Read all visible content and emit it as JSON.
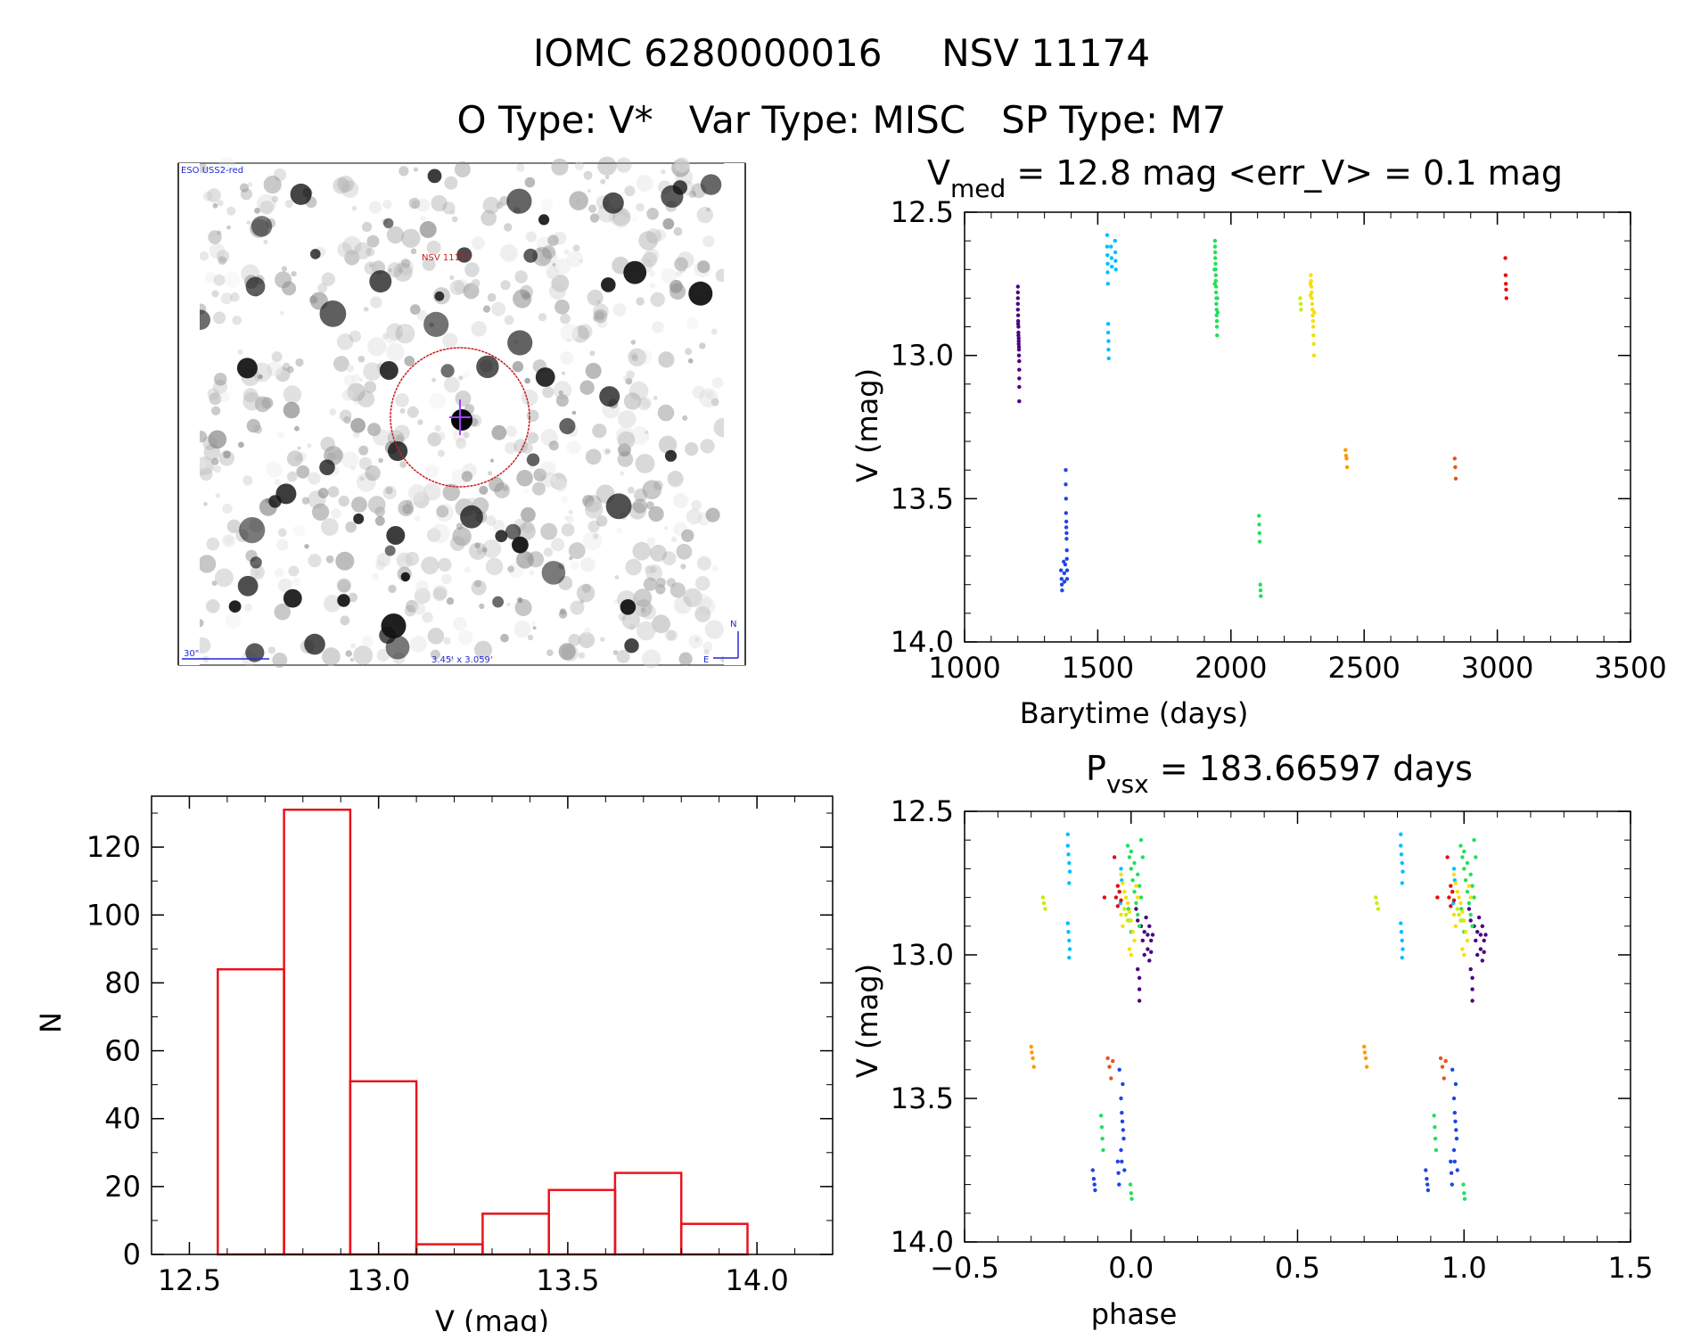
{
  "header": {
    "line1": "IOMC 6280000016     NSV 11174",
    "line2": "O Type: V*   Var Type: MISC   SP Type: M7"
  },
  "image_panel": {
    "corner_label": "ESO USS2-red",
    "target_label": "NSV 11174",
    "scale_label": "30\"",
    "fov_label": "3.45' x 3.059'",
    "north_label": "N",
    "east_label": "E"
  },
  "colors": {
    "histogram": "#e8141c",
    "marker_circle": "#c81e1e",
    "marker_cross": "#a040ff",
    "compass": "#1f2ad6",
    "series": [
      "#4b0082",
      "#1f45e6",
      "#00bfff",
      "#21e05a",
      "#c3f000",
      "#f5e000",
      "#ff9800",
      "#e7541a",
      "#e40d0d"
    ]
  },
  "chart_data": [
    {
      "type": "scatter",
      "title_main": "V",
      "title_sub": "med",
      "title_rest": " = 12.8 mag <err_V> = 0.1 mag",
      "xlabel": "Barytime (days)",
      "ylabel": "V (mag)",
      "xlim": [
        1000,
        3500
      ],
      "ylim": [
        14.0,
        12.5
      ],
      "xticks": [
        "1000",
        "1500",
        "2000",
        "2500",
        "3000",
        "3500"
      ],
      "yticks": [
        "12.5",
        "13.0",
        "13.5",
        "14.0"
      ],
      "series": [
        {
          "points": [
            [
              1200,
              12.76
            ],
            [
              1200,
              12.78
            ],
            [
              1200,
              12.8
            ],
            [
              1200,
              12.82
            ],
            [
              1200,
              12.84
            ],
            [
              1201,
              12.86
            ],
            [
              1201,
              12.88
            ],
            [
              1201,
              12.89
            ],
            [
              1202,
              12.9
            ],
            [
              1202,
              12.92
            ],
            [
              1202,
              12.93
            ],
            [
              1203,
              12.94
            ],
            [
              1203,
              12.95
            ],
            [
              1203,
              12.96
            ],
            [
              1204,
              12.97
            ],
            [
              1204,
              12.98
            ],
            [
              1204,
              13.0
            ],
            [
              1205,
              13.02
            ],
            [
              1205,
              13.05
            ],
            [
              1205,
              13.08
            ],
            [
              1205,
              13.11
            ],
            [
              1205,
              13.16
            ]
          ]
        },
        {
          "points": [
            [
              1362,
              13.75
            ],
            [
              1364,
              13.78
            ],
            [
              1365,
              13.8
            ],
            [
              1366,
              13.82
            ],
            [
              1372,
              13.72
            ],
            [
              1374,
              13.76
            ],
            [
              1375,
              13.79
            ],
            [
              1378,
              13.73
            ],
            [
              1380,
              13.4
            ],
            [
              1380,
              13.45
            ],
            [
              1381,
              13.5
            ],
            [
              1381,
              13.55
            ],
            [
              1382,
              13.58
            ],
            [
              1382,
              13.6
            ],
            [
              1383,
              13.62
            ],
            [
              1383,
              13.64
            ],
            [
              1384,
              13.68
            ],
            [
              1384,
              13.71
            ],
            [
              1385,
              13.75
            ],
            [
              1385,
              13.78
            ]
          ]
        },
        {
          "points": [
            [
              1535,
              12.58
            ],
            [
              1535,
              12.62
            ],
            [
              1536,
              12.65
            ],
            [
              1537,
              12.68
            ],
            [
              1537,
              12.71
            ],
            [
              1538,
              12.75
            ],
            [
              1539,
              12.89
            ],
            [
              1539,
              12.92
            ],
            [
              1540,
              12.95
            ],
            [
              1540,
              12.98
            ],
            [
              1541,
              13.01
            ],
            [
              1550,
              12.62
            ],
            [
              1552,
              12.66
            ],
            [
              1553,
              12.69
            ],
            [
              1565,
              12.6
            ],
            [
              1566,
              12.64
            ],
            [
              1567,
              12.67
            ],
            [
              1568,
              12.7
            ]
          ]
        },
        {
          "points": [
            [
              1940,
              12.6
            ],
            [
              1940,
              12.62
            ],
            [
              1941,
              12.64
            ],
            [
              1941,
              12.66
            ],
            [
              1942,
              12.68
            ],
            [
              1942,
              12.7
            ],
            [
              1943,
              12.72
            ],
            [
              1943,
              12.74
            ],
            [
              1944,
              12.76
            ],
            [
              1944,
              12.78
            ],
            [
              1945,
              12.8
            ],
            [
              1945,
              12.82
            ],
            [
              1946,
              12.84
            ],
            [
              1946,
              12.86
            ],
            [
              1947,
              12.88
            ],
            [
              1947,
              12.9
            ],
            [
              1948,
              12.93
            ],
            [
              1938,
              12.7
            ],
            [
              1939,
              12.75
            ],
            [
              1949,
              12.8
            ],
            [
              1950,
              12.85
            ],
            [
              2105,
              13.56
            ],
            [
              2106,
              13.59
            ],
            [
              2107,
              13.62
            ],
            [
              2108,
              13.65
            ],
            [
              2110,
              13.8
            ],
            [
              2111,
              13.82
            ],
            [
              2112,
              13.84
            ]
          ]
        },
        {
          "points": [
            [
              2260,
              12.8
            ],
            [
              2262,
              12.82
            ],
            [
              2263,
              12.84
            ]
          ]
        },
        {
          "points": [
            [
              2300,
              12.72
            ],
            [
              2301,
              12.74
            ],
            [
              2302,
              12.76
            ],
            [
              2303,
              12.78
            ],
            [
              2304,
              12.8
            ],
            [
              2305,
              12.82
            ],
            [
              2306,
              12.84
            ],
            [
              2307,
              12.86
            ],
            [
              2308,
              12.88
            ],
            [
              2309,
              12.9
            ],
            [
              2310,
              12.93
            ],
            [
              2311,
              12.96
            ],
            [
              2312,
              13.0
            ],
            [
              2298,
              12.75
            ],
            [
              2299,
              12.79
            ],
            [
              2313,
              12.85
            ]
          ]
        },
        {
          "points": [
            [
              2430,
              13.33
            ],
            [
              2432,
              13.35
            ],
            [
              2434,
              13.36
            ],
            [
              2436,
              13.39
            ]
          ]
        },
        {
          "points": [
            [
              2840,
              13.36
            ],
            [
              2842,
              13.39
            ],
            [
              2844,
              13.43
            ]
          ]
        },
        {
          "points": [
            [
              3030,
              12.66
            ],
            [
              3031,
              12.72
            ],
            [
              3032,
              12.75
            ],
            [
              3033,
              12.77
            ],
            [
              3034,
              12.8
            ]
          ]
        }
      ]
    },
    {
      "type": "bar",
      "title": "",
      "xlabel": "V (mag)",
      "ylabel": "N",
      "xlim": [
        12.4,
        14.2
      ],
      "ylim": [
        0,
        135
      ],
      "xticks": [
        "12.5",
        "13.0",
        "13.5",
        "14.0"
      ],
      "yticks": [
        "0",
        "20",
        "40",
        "60",
        "80",
        "100",
        "120"
      ],
      "bin_edges": [
        12.575,
        12.75,
        12.925,
        13.1,
        13.275,
        13.45,
        13.625,
        13.8,
        13.975
      ],
      "values": [
        84,
        131,
        51,
        3,
        12,
        19,
        24,
        9
      ]
    },
    {
      "type": "scatter",
      "title_main": "P",
      "title_sub": "vsx",
      "title_rest": " = 183.66597 days",
      "xlabel": "phase",
      "ylabel": "V (mag)",
      "xlim": [
        -0.5,
        1.5
      ],
      "ylim": [
        14.0,
        12.5
      ],
      "xticks": [
        "−0.5",
        "0.0",
        "0.5",
        "1.0",
        "1.5"
      ],
      "yticks": [
        "12.5",
        "13.0",
        "13.5",
        "14.0"
      ],
      "series": [
        {
          "points": [
            [
              0.03,
              12.9
            ],
            [
              0.035,
              12.95
            ],
            [
              0.04,
              13.0
            ],
            [
              0.04,
              12.92
            ],
            [
              0.045,
              12.87
            ],
            [
              0.05,
              12.93
            ],
            [
              0.05,
              12.98
            ],
            [
              0.055,
              13.02
            ],
            [
              0.055,
              12.9
            ],
            [
              0.06,
              12.95
            ],
            [
              0.06,
              12.99
            ],
            [
              0.065,
              12.93
            ],
            [
              0.02,
              13.05
            ],
            [
              0.025,
              13.08
            ],
            [
              0.025,
              13.12
            ],
            [
              0.025,
              13.16
            ],
            [
              0.015,
              12.84
            ],
            [
              0.02,
              12.88
            ]
          ]
        },
        {
          "points": [
            [
              -0.115,
              13.75
            ],
            [
              -0.112,
              13.78
            ],
            [
              -0.11,
              13.8
            ],
            [
              -0.108,
              13.82
            ],
            [
              -0.04,
              13.72
            ],
            [
              -0.038,
              13.76
            ],
            [
              -0.036,
              13.8
            ],
            [
              -0.03,
              13.5
            ],
            [
              -0.028,
              13.55
            ],
            [
              -0.026,
              13.58
            ],
            [
              -0.024,
              13.61
            ],
            [
              -0.022,
              13.64
            ],
            [
              -0.03,
              13.68
            ],
            [
              -0.028,
              13.72
            ],
            [
              -0.025,
              13.45
            ],
            [
              -0.02,
              13.75
            ],
            [
              -0.035,
              13.4
            ]
          ]
        },
        {
          "points": [
            [
              -0.19,
              12.58
            ],
            [
              -0.19,
              12.62
            ],
            [
              -0.188,
              12.65
            ],
            [
              -0.186,
              12.68
            ],
            [
              -0.184,
              12.71
            ],
            [
              -0.186,
              12.75
            ],
            [
              -0.19,
              12.89
            ],
            [
              -0.188,
              12.92
            ],
            [
              -0.186,
              12.95
            ],
            [
              -0.184,
              12.98
            ],
            [
              -0.186,
              13.01
            ],
            [
              -0.035,
              12.78
            ],
            [
              -0.032,
              12.82
            ],
            [
              -0.03,
              12.7
            ],
            [
              -0.028,
              12.74
            ]
          ]
        },
        {
          "points": [
            [
              -0.01,
              12.62
            ],
            [
              -0.005,
              12.66
            ],
            [
              0.0,
              12.7
            ],
            [
              0.005,
              12.74
            ],
            [
              0.01,
              12.78
            ],
            [
              0.015,
              12.82
            ],
            [
              0.02,
              12.86
            ],
            [
              0.025,
              12.9
            ],
            [
              0.0,
              12.64
            ],
            [
              0.01,
              12.68
            ],
            [
              0.02,
              12.72
            ],
            [
              0.025,
              12.76
            ],
            [
              0.03,
              12.6
            ],
            [
              0.035,
              12.66
            ],
            [
              0.03,
              12.8
            ],
            [
              -0.008,
              12.84
            ],
            [
              -0.005,
              12.88
            ],
            [
              0.0,
              12.92
            ],
            [
              -0.09,
              13.56
            ],
            [
              -0.088,
              13.6
            ],
            [
              -0.086,
              13.64
            ],
            [
              -0.084,
              13.68
            ],
            [
              -0.002,
              13.8
            ],
            [
              0.0,
              13.83
            ],
            [
              0.002,
              13.85
            ]
          ]
        },
        {
          "points": [
            [
              -0.265,
              12.8
            ],
            [
              -0.262,
              12.82
            ],
            [
              -0.258,
              12.84
            ],
            [
              -0.02,
              12.84
            ],
            [
              -0.015,
              12.86
            ],
            [
              -0.01,
              12.88
            ]
          ]
        },
        {
          "points": [
            [
              -0.03,
              12.72
            ],
            [
              -0.025,
              12.75
            ],
            [
              -0.02,
              12.78
            ],
            [
              -0.015,
              12.8
            ],
            [
              -0.01,
              12.82
            ],
            [
              -0.005,
              12.85
            ],
            [
              0.0,
              12.88
            ],
            [
              0.005,
              12.92
            ],
            [
              0.01,
              12.95
            ],
            [
              -0.005,
              12.98
            ],
            [
              0.0,
              13.0
            ],
            [
              -0.03,
              12.86
            ],
            [
              -0.025,
              12.9
            ],
            [
              0.015,
              12.76
            ],
            [
              0.02,
              12.8
            ]
          ]
        },
        {
          "points": [
            [
              -0.3,
              13.32
            ],
            [
              -0.298,
              13.34
            ],
            [
              -0.295,
              13.36
            ],
            [
              -0.292,
              13.39
            ]
          ]
        },
        {
          "points": [
            [
              -0.07,
              13.36
            ],
            [
              -0.065,
              13.39
            ],
            [
              -0.06,
              13.43
            ],
            [
              -0.055,
              13.37
            ]
          ]
        },
        {
          "points": [
            [
              -0.04,
              12.76
            ],
            [
              -0.035,
              12.78
            ],
            [
              -0.045,
              12.8
            ],
            [
              -0.03,
              12.81
            ],
            [
              -0.04,
              12.83
            ],
            [
              -0.08,
              12.8
            ],
            [
              -0.05,
              12.66
            ]
          ]
        }
      ],
      "repeat_offset": 1.0
    }
  ]
}
